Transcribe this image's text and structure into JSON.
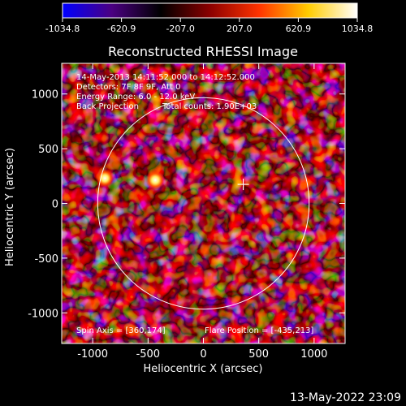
{
  "chart_data": {
    "type": "heatmap",
    "title": "Reconstructed RHESSI Image",
    "xlabel": "Heliocentric X (arcsec)",
    "ylabel": "Heliocentric Y (arcsec)",
    "xlim": [
      -1280,
      1280
    ],
    "ylim": [
      -1280,
      1280
    ],
    "x_ticks": [
      -1000,
      -500,
      0,
      500,
      1000
    ],
    "y_ticks": [
      -1000,
      -500,
      0,
      500,
      1000
    ],
    "colorbar": {
      "range": [
        -1034.8,
        1034.8
      ],
      "tick_labels": [
        "-1034.8",
        "-620.9",
        "-207.0",
        "207.0",
        "620.9",
        "1034.8"
      ],
      "colors": [
        "#0000ff",
        "#4b0082",
        "#000000",
        "#8b0000",
        "#ff3300",
        "#ffcc00",
        "#ffffff"
      ]
    },
    "annotations": {
      "time_range": "14-May-2013 14:11:52.000 to 14:12:52.000",
      "detectors": "Detectors: 7F 8F 9F, Att 0",
      "energy_range": "Energy Range: 6.0 - 12.0 keV",
      "method": "Back Projection",
      "total_counts": "Total counts: 1.90E+03",
      "spin_axis": "Spin Axis = [360,174]",
      "flare_position": "Flare Position = [-435,213]"
    },
    "solar_limb": {
      "center": [
        0,
        0
      ],
      "radius_arcsec": 955
    },
    "spin_axis_marker": [
      360,
      174
    ],
    "bright_sources": [
      {
        "x": -435,
        "y": 213,
        "intensity": 1034.8
      },
      {
        "x": -890,
        "y": 230,
        "intensity": 980
      }
    ]
  },
  "timestamp": "13-May-2022 23:09"
}
